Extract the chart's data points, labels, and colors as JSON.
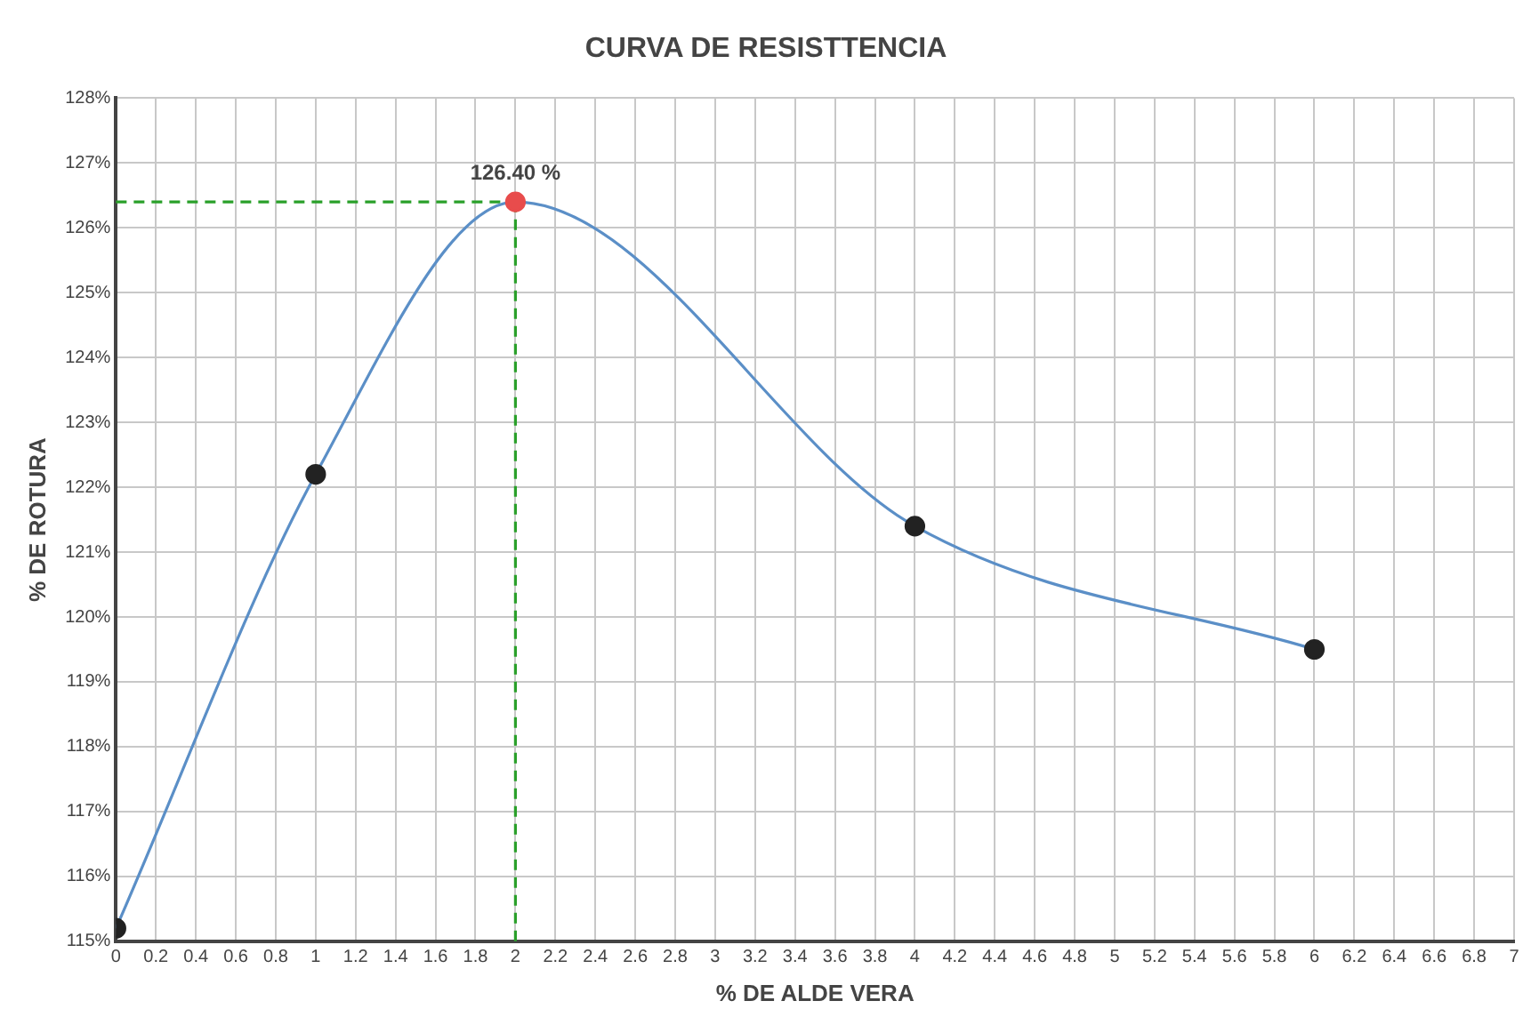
{
  "chart_data": {
    "type": "line",
    "title": "CURVA DE RESISTTENCIA",
    "xlabel": "% DE ALDE VERA",
    "ylabel": "% DE ROTURA",
    "x": [
      0,
      1,
      2,
      4,
      6
    ],
    "series": [
      {
        "color": "#5b8fc7",
        "values": [
          115.2,
          122.2,
          126.4,
          121.4,
          119.5
        ],
        "colors": [
          "#222222",
          "#222222",
          "#e84c4c",
          "#222222",
          "#222222"
        ],
        "value_labels": [
          null,
          null,
          "126.40 %",
          null,
          null
        ]
      }
    ],
    "xlim": [
      0,
      7
    ],
    "xticks": [
      0,
      0.2,
      0.4,
      0.6,
      0.8,
      1,
      1.2,
      1.4,
      1.6,
      1.8,
      2,
      2.2,
      2.4,
      2.6,
      2.8,
      3,
      3.2,
      3.4,
      3.6,
      3.8,
      4,
      4.2,
      4.4,
      4.6,
      4.8,
      5,
      5.2,
      5.4,
      5.6,
      5.8,
      6,
      6.2,
      6.4,
      6.6,
      6.8,
      7
    ],
    "ylim": [
      115,
      128
    ],
    "yticks": [
      {
        "value": 115,
        "label": "115%"
      },
      {
        "value": 116,
        "label": "116%"
      },
      {
        "value": 117,
        "label": "117%"
      },
      {
        "value": 118,
        "label": "118%"
      },
      {
        "value": 119,
        "label": "119%"
      },
      {
        "value": 120,
        "label": "120%"
      },
      {
        "value": 121,
        "label": "121%"
      },
      {
        "value": 122,
        "label": "122%"
      },
      {
        "value": 123,
        "label": "123%"
      },
      {
        "value": 124,
        "label": "124%"
      },
      {
        "value": 125,
        "label": "125%"
      },
      {
        "value": 126,
        "label": "126%"
      },
      {
        "value": 127,
        "label": "127%"
      },
      {
        "value": 128,
        "label": "128%"
      }
    ],
    "ref_lines": [
      {
        "axis": "y",
        "value": 126.4,
        "color": "#2aa02a",
        "line_style": "dashed"
      },
      {
        "axis": "x",
        "value": 2,
        "color": "#2aa02a",
        "line_style": "dashed"
      }
    ],
    "grid": true,
    "legend": false,
    "marker": "circle",
    "line_style": "solid"
  }
}
